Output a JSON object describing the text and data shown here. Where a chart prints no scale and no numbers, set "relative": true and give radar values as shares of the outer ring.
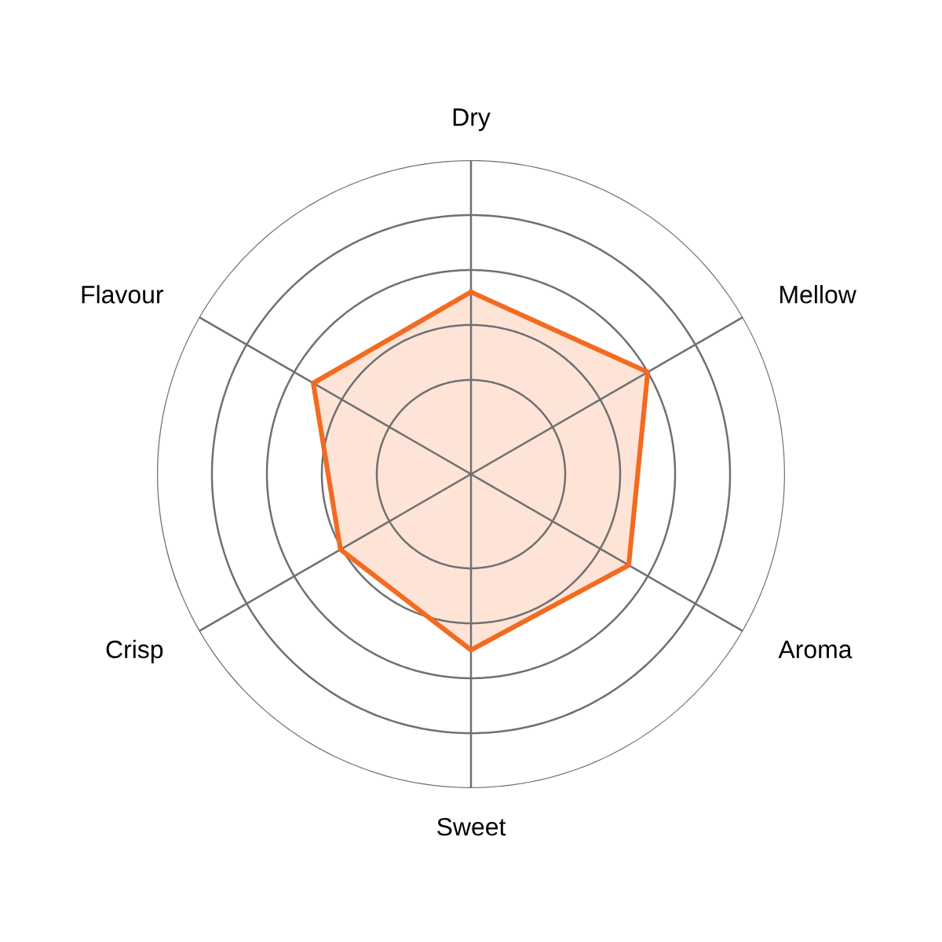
{
  "chart_data": {
    "type": "radar",
    "relative": true,
    "grid": true,
    "categories": [
      "Dry",
      "Mellow",
      "Aroma",
      "Sweet",
      "Crisp",
      "Flavour"
    ],
    "series": [
      {
        "color": "#f26b21",
        "values": [
          0.58,
          0.65,
          0.58,
          0.56,
          0.48,
          0.58
        ]
      }
    ]
  }
}
